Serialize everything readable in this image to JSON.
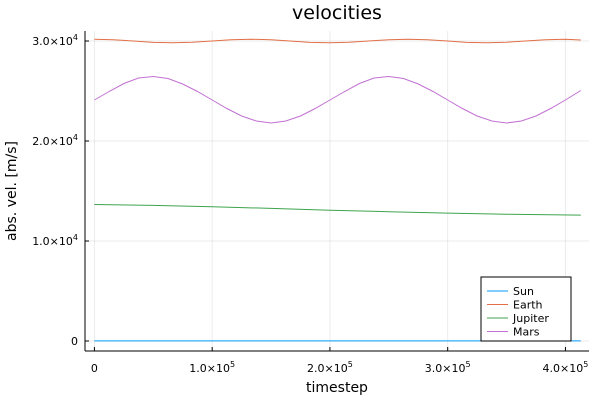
{
  "chart_data": {
    "type": "line",
    "title": "velocities",
    "xlabel": "timestep",
    "ylabel": "abs. vel. [m/s]",
    "xlim": [
      -8000,
      420000
    ],
    "ylim": [
      -1000,
      31000
    ],
    "x_ticks": [
      {
        "value": 0,
        "mantissa": "0",
        "exp": ""
      },
      {
        "value": 100000,
        "mantissa": "1.0×10",
        "exp": "5"
      },
      {
        "value": 200000,
        "mantissa": "2.0×10",
        "exp": "5"
      },
      {
        "value": 300000,
        "mantissa": "3.0×10",
        "exp": "5"
      },
      {
        "value": 400000,
        "mantissa": "4.0×10",
        "exp": "5"
      }
    ],
    "y_ticks": [
      {
        "value": 0,
        "mantissa": "0",
        "exp": ""
      },
      {
        "value": 10000,
        "mantissa": "1.0×10",
        "exp": "4"
      },
      {
        "value": 20000,
        "mantissa": "2.0×10",
        "exp": "4"
      },
      {
        "value": 30000,
        "mantissa": "3.0×10",
        "exp": "4"
      }
    ],
    "grid": true,
    "legend_position": "bottom-right",
    "series": [
      {
        "name": "Sun",
        "color": "#009af9",
        "points": [
          [
            0,
            13
          ],
          [
            100000,
            13
          ],
          [
            200000,
            13
          ],
          [
            300000,
            13
          ],
          [
            413000,
            13
          ]
        ]
      },
      {
        "name": "Earth",
        "color": "#e26f46",
        "points": [
          [
            0,
            30180
          ],
          [
            16000,
            30120
          ],
          [
            33000,
            30000
          ],
          [
            50000,
            29860
          ],
          [
            66000,
            29820
          ],
          [
            83000,
            29880
          ],
          [
            100000,
            30000
          ],
          [
            116000,
            30130
          ],
          [
            133000,
            30180
          ],
          [
            150000,
            30120
          ],
          [
            166000,
            30000
          ],
          [
            183000,
            29860
          ],
          [
            200000,
            29820
          ],
          [
            216000,
            29880
          ],
          [
            233000,
            30000
          ],
          [
            250000,
            30130
          ],
          [
            266000,
            30180
          ],
          [
            283000,
            30120
          ],
          [
            300000,
            30000
          ],
          [
            316000,
            29860
          ],
          [
            333000,
            29820
          ],
          [
            350000,
            29880
          ],
          [
            366000,
            30000
          ],
          [
            383000,
            30130
          ],
          [
            400000,
            30180
          ],
          [
            413000,
            30100
          ]
        ]
      },
      {
        "name": "Jupiter",
        "color": "#3da44d",
        "points": [
          [
            0,
            13650
          ],
          [
            50000,
            13560
          ],
          [
            100000,
            13420
          ],
          [
            150000,
            13260
          ],
          [
            200000,
            13080
          ],
          [
            250000,
            12930
          ],
          [
            300000,
            12790
          ],
          [
            350000,
            12680
          ],
          [
            413000,
            12590
          ]
        ]
      },
      {
        "name": "Mars",
        "color": "#c271d2",
        "points": [
          [
            0,
            24100
          ],
          [
            12500,
            24950
          ],
          [
            25000,
            25750
          ],
          [
            37500,
            26300
          ],
          [
            50000,
            26450
          ],
          [
            62500,
            26250
          ],
          [
            75000,
            25700
          ],
          [
            87500,
            24950
          ],
          [
            100000,
            24100
          ],
          [
            112500,
            23250
          ],
          [
            125000,
            22500
          ],
          [
            137500,
            22000
          ],
          [
            150000,
            21800
          ],
          [
            162500,
            22000
          ],
          [
            175000,
            22500
          ],
          [
            187500,
            23250
          ],
          [
            200000,
            24100
          ],
          [
            212500,
            24950
          ],
          [
            225000,
            25750
          ],
          [
            237500,
            26300
          ],
          [
            250000,
            26450
          ],
          [
            262500,
            26250
          ],
          [
            275000,
            25700
          ],
          [
            287500,
            24950
          ],
          [
            300000,
            24100
          ],
          [
            312500,
            23250
          ],
          [
            325000,
            22500
          ],
          [
            337500,
            22000
          ],
          [
            350000,
            21800
          ],
          [
            362500,
            22000
          ],
          [
            375000,
            22500
          ],
          [
            387500,
            23250
          ],
          [
            400000,
            24100
          ],
          [
            413000,
            25050
          ]
        ]
      }
    ]
  }
}
